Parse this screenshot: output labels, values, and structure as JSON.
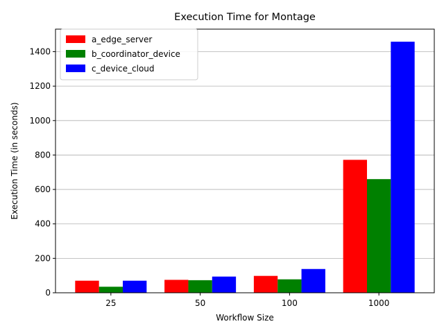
{
  "chart_data": {
    "type": "bar",
    "title": "Execution Time for Montage",
    "xlabel": "Workflow Size",
    "ylabel": "Execution Time (in seconds)",
    "categories": [
      "25",
      "50",
      "100",
      "1000"
    ],
    "series": [
      {
        "name": "a_edge_server",
        "color": "#ff0000",
        "values": [
          70,
          75,
          98,
          772
        ]
      },
      {
        "name": "b_coordinator_device",
        "color": "#008000",
        "values": [
          35,
          73,
          78,
          660
        ]
      },
      {
        "name": "c_device_cloud",
        "color": "#0000ff",
        "values": [
          70,
          94,
          138,
          1458
        ]
      }
    ],
    "ylim": [
      0,
      1531
    ],
    "yticks": [
      0,
      200,
      400,
      600,
      800,
      1000,
      1200,
      1400
    ],
    "grid": "y-axis, major",
    "legend_position": "upper-left"
  }
}
